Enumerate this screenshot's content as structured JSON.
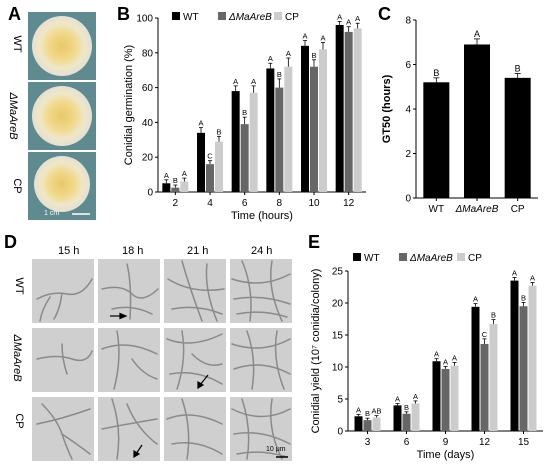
{
  "panels": {
    "A": {
      "letter": "A",
      "rows": [
        "WT",
        "ΔMaAreB",
        "CP"
      ],
      "scalebar": "1 cm"
    },
    "B": {
      "letter": "B"
    },
    "C": {
      "letter": "C"
    },
    "D": {
      "letter": "D",
      "times": [
        "15 h",
        "18 h",
        "21 h",
        "24 h"
      ],
      "rows": [
        "WT",
        "ΔMaAreB",
        "CP"
      ],
      "scalebar": "10 μm"
    },
    "E": {
      "letter": "E"
    }
  },
  "chart_data": [
    {
      "id": "B",
      "type": "bar",
      "categories": [
        "2",
        "4",
        "6",
        "8",
        "10",
        "12"
      ],
      "series": [
        {
          "name": "WT",
          "color": "#000000",
          "values": [
            5,
            34,
            58,
            71,
            84,
            96
          ],
          "errors": [
            2,
            3,
            3,
            3,
            3,
            2
          ],
          "letters": [
            "A",
            "A",
            "A",
            "A",
            "A",
            "A"
          ]
        },
        {
          "name": "ΔMaAreB",
          "color": "#666666",
          "values": [
            2.5,
            16,
            39,
            60,
            72,
            92
          ],
          "errors": [
            1.5,
            2,
            4,
            5,
            4,
            3
          ],
          "letters": [
            "B",
            "C",
            "B",
            "B",
            "B",
            "A"
          ]
        },
        {
          "name": "CP",
          "color": "#cccccc",
          "values": [
            6,
            29,
            57,
            72,
            82,
            94
          ],
          "errors": [
            2,
            3,
            4,
            5,
            4,
            3
          ],
          "letters": [
            "A",
            "B",
            "A",
            "A",
            "A",
            "A"
          ]
        }
      ],
      "xlabel": "Time (hours)",
      "ylabel": "Conidial germination (%)",
      "ylim": [
        0,
        100
      ],
      "yticks": [
        0,
        20,
        40,
        60,
        80,
        100
      ],
      "legend": "top"
    },
    {
      "id": "C",
      "type": "bar",
      "categories": [
        "WT",
        "ΔMaAreB",
        "CP"
      ],
      "values": [
        5.2,
        6.9,
        5.4
      ],
      "errors": [
        0.2,
        0.25,
        0.2
      ],
      "letters": [
        "B",
        "A",
        "B"
      ],
      "color": "#000000",
      "ylabel": "GT50 (hours)",
      "ylim": [
        0,
        8
      ],
      "yticks": [
        0,
        2,
        4,
        6,
        8
      ]
    },
    {
      "id": "E",
      "type": "bar",
      "categories": [
        "3",
        "6",
        "9",
        "12",
        "15"
      ],
      "series": [
        {
          "name": "WT",
          "color": "#000000",
          "values": [
            2.3,
            4.0,
            10.9,
            19.4,
            23.5
          ],
          "errors": [
            0.3,
            0.3,
            0.4,
            0.5,
            0.5
          ],
          "letters": [
            "A",
            "A",
            "A",
            "A",
            "A"
          ]
        },
        {
          "name": "ΔMaAreB",
          "color": "#666666",
          "values": [
            1.7,
            2.7,
            9.7,
            13.6,
            19.5
          ],
          "errors": [
            0.3,
            0.3,
            0.4,
            0.8,
            0.6
          ],
          "letters": [
            "B",
            "B",
            "A",
            "C",
            "B"
          ]
        },
        {
          "name": "CP",
          "color": "#cccccc",
          "values": [
            2.1,
            4.3,
            10.2,
            16.7,
            22.7
          ],
          "errors": [
            0.3,
            0.4,
            0.5,
            0.7,
            0.5
          ],
          "letters": [
            "AB",
            "A",
            "A",
            "B",
            "A"
          ]
        }
      ],
      "xlabel": "Time (days)",
      "ylabel": "Conidial yield (10⁷ conidia/colony)",
      "ylim": [
        0,
        25
      ],
      "yticks": [
        0,
        5,
        10,
        15,
        20,
        25
      ],
      "legend": "top"
    }
  ]
}
